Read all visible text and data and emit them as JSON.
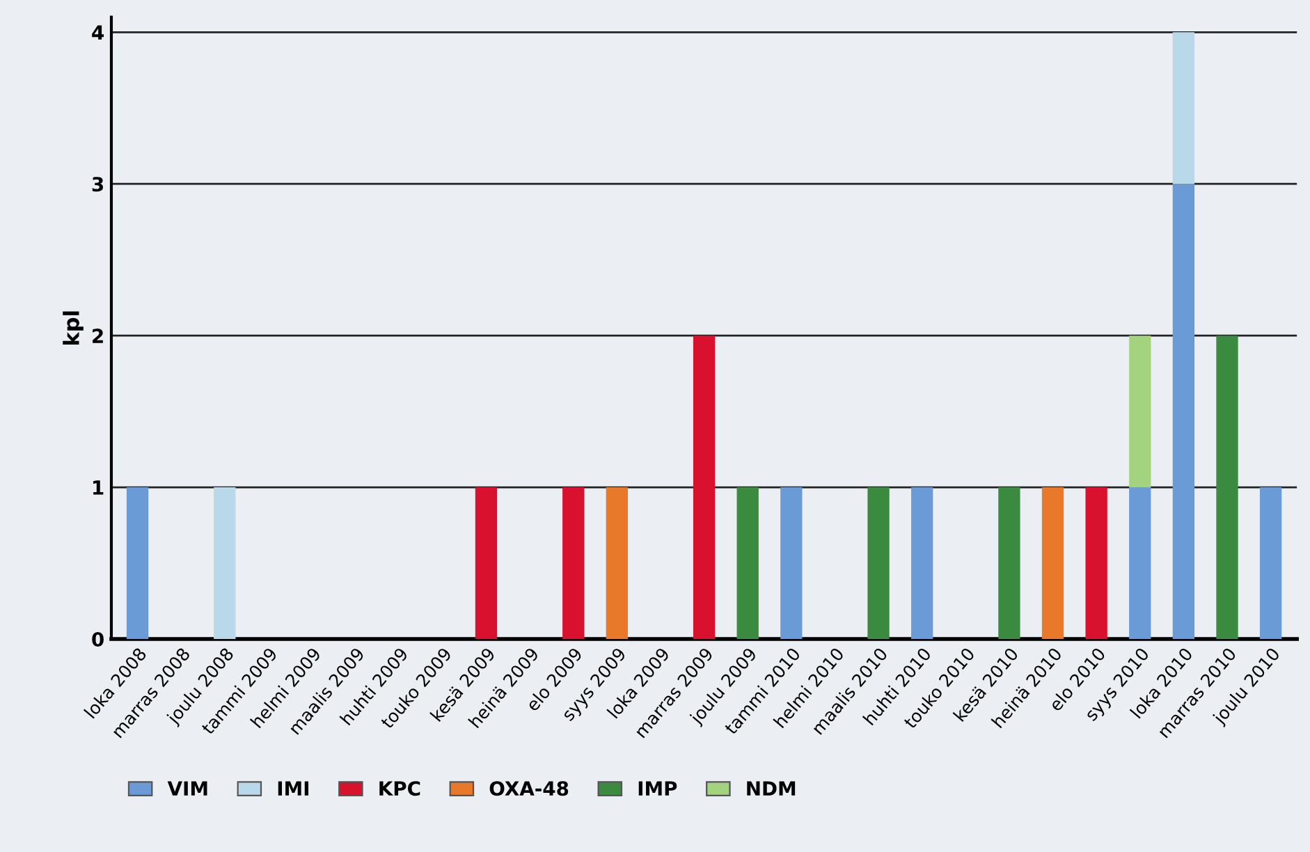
{
  "chart_data": {
    "type": "bar",
    "stacked": true,
    "ylabel": "kpl",
    "categories": [
      "loka 2008",
      "marras 2008",
      "joulu 2008",
      "tammi 2009",
      "helmi 2009",
      "maalis 2009",
      "huhti 2009",
      "touko 2009",
      "kesä 2009",
      "heinä 2009",
      "elo 2009",
      "syys 2009",
      "loka 2009",
      "marras 2009",
      "joulu 2009",
      "tammi 2010",
      "helmi 2010",
      "maalis 2010",
      "huhti 2010",
      "touko 2010",
      "kesä 2010",
      "heinä 2010",
      "elo 2010",
      "syys 2010",
      "loka 2010",
      "marras 2010",
      "joulu 2010"
    ],
    "series": [
      {
        "name": "VIM",
        "color": "#6a9bd6",
        "values": [
          1,
          null,
          null,
          null,
          null,
          null,
          null,
          null,
          null,
          null,
          null,
          null,
          null,
          null,
          null,
          1,
          null,
          null,
          1,
          null,
          null,
          null,
          null,
          1,
          3,
          null,
          1
        ]
      },
      {
        "name": "IMI",
        "color": "#b9d9ea",
        "values": [
          null,
          null,
          1,
          null,
          null,
          null,
          null,
          null,
          null,
          null,
          null,
          null,
          null,
          null,
          null,
          null,
          null,
          null,
          null,
          null,
          null,
          null,
          null,
          null,
          1,
          null,
          null
        ]
      },
      {
        "name": "KPC",
        "color": "#d7112e",
        "values": [
          null,
          null,
          null,
          null,
          null,
          null,
          null,
          null,
          1,
          null,
          1,
          null,
          null,
          2,
          null,
          null,
          null,
          null,
          null,
          null,
          null,
          null,
          1,
          null,
          null,
          null,
          null
        ]
      },
      {
        "name": "OXA-48",
        "color": "#e8792b",
        "values": [
          null,
          null,
          null,
          null,
          null,
          null,
          null,
          null,
          null,
          null,
          null,
          1,
          null,
          null,
          null,
          null,
          null,
          null,
          null,
          null,
          null,
          1,
          null,
          null,
          null,
          null,
          null
        ]
      },
      {
        "name": "IMP",
        "color": "#3a8a3f",
        "values": [
          null,
          null,
          null,
          null,
          null,
          null,
          null,
          null,
          null,
          null,
          null,
          null,
          null,
          null,
          1,
          null,
          null,
          1,
          null,
          null,
          1,
          null,
          null,
          null,
          null,
          2,
          null
        ]
      },
      {
        "name": "NDM",
        "color": "#a3d37f",
        "values": [
          null,
          null,
          null,
          null,
          null,
          null,
          null,
          null,
          null,
          null,
          null,
          null,
          null,
          null,
          null,
          null,
          null,
          null,
          null,
          null,
          null,
          null,
          null,
          1,
          null,
          null,
          null
        ]
      }
    ],
    "ylim": [
      0,
      4.1
    ],
    "yticks": [
      0,
      1,
      2,
      3,
      4
    ],
    "grid": "y",
    "legend": "bottom"
  }
}
